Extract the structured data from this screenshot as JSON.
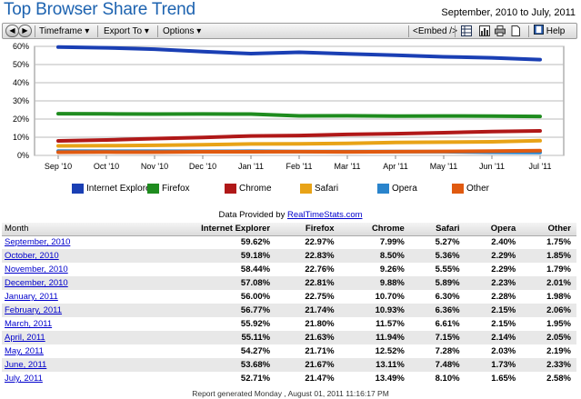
{
  "header": {
    "title": "Top Browser Share Trend",
    "date_range": "September, 2010 to July, 2011"
  },
  "toolbar": {
    "timeframe_label": "Timeframe",
    "export_label": "Export To",
    "options_label": "Options",
    "embed_label": "<Embed />",
    "help_label": "Help"
  },
  "chart_data": {
    "type": "line",
    "title": "",
    "xlabel": "",
    "ylabel": "",
    "categories": [
      "Sep '10",
      "Oct '10",
      "Nov '10",
      "Dec '10",
      "Jan '11",
      "Feb '11",
      "Mar '11",
      "Apr '11",
      "May '11",
      "Jun '11",
      "Jul '11"
    ],
    "y_ticks": [
      "0%",
      "10%",
      "20%",
      "30%",
      "40%",
      "50%",
      "60%"
    ],
    "ylim": [
      0,
      60
    ],
    "grid": true,
    "legend_position": "bottom",
    "series": [
      {
        "name": "Internet Explorer",
        "color": "#1a3fb4",
        "values": [
          59.62,
          59.18,
          58.44,
          57.08,
          56.0,
          56.77,
          55.92,
          55.11,
          54.27,
          53.68,
          52.71
        ]
      },
      {
        "name": "Firefox",
        "color": "#1f8c1f",
        "values": [
          22.97,
          22.83,
          22.76,
          22.81,
          22.75,
          21.74,
          21.8,
          21.63,
          21.71,
          21.67,
          21.47
        ]
      },
      {
        "name": "Chrome",
        "color": "#b01818",
        "values": [
          7.99,
          8.5,
          9.26,
          9.88,
          10.7,
          10.93,
          11.57,
          11.94,
          12.52,
          13.11,
          13.49
        ]
      },
      {
        "name": "Safari",
        "color": "#e8a317",
        "values": [
          5.27,
          5.36,
          5.55,
          5.89,
          6.3,
          6.36,
          6.61,
          7.15,
          7.28,
          7.48,
          8.1
        ]
      },
      {
        "name": "Opera",
        "color": "#2a84cc",
        "values": [
          2.4,
          2.29,
          2.29,
          2.23,
          2.28,
          2.15,
          2.15,
          2.14,
          2.03,
          1.73,
          1.65
        ]
      },
      {
        "name": "Other",
        "color": "#e05a10",
        "values": [
          1.75,
          1.85,
          1.79,
          2.01,
          1.98,
          2.06,
          1.95,
          2.05,
          2.19,
          2.33,
          2.58
        ]
      }
    ]
  },
  "provided": {
    "prefix": "Data Provided by ",
    "link_text": "RealTimeStats.com"
  },
  "table": {
    "headers": [
      "Month",
      "Internet Explorer",
      "Firefox",
      "Chrome",
      "Safari",
      "Opera",
      "Other"
    ],
    "rows": [
      [
        "September, 2010",
        "59.62%",
        "22.97%",
        "7.99%",
        "5.27%",
        "2.40%",
        "1.75%"
      ],
      [
        "October, 2010",
        "59.18%",
        "22.83%",
        "8.50%",
        "5.36%",
        "2.29%",
        "1.85%"
      ],
      [
        "November, 2010",
        "58.44%",
        "22.76%",
        "9.26%",
        "5.55%",
        "2.29%",
        "1.79%"
      ],
      [
        "December, 2010",
        "57.08%",
        "22.81%",
        "9.88%",
        "5.89%",
        "2.23%",
        "2.01%"
      ],
      [
        "January, 2011",
        "56.00%",
        "22.75%",
        "10.70%",
        "6.30%",
        "2.28%",
        "1.98%"
      ],
      [
        "February, 2011",
        "56.77%",
        "21.74%",
        "10.93%",
        "6.36%",
        "2.15%",
        "2.06%"
      ],
      [
        "March, 2011",
        "55.92%",
        "21.80%",
        "11.57%",
        "6.61%",
        "2.15%",
        "1.95%"
      ],
      [
        "April, 2011",
        "55.11%",
        "21.63%",
        "11.94%",
        "7.15%",
        "2.14%",
        "2.05%"
      ],
      [
        "May, 2011",
        "54.27%",
        "21.71%",
        "12.52%",
        "7.28%",
        "2.03%",
        "2.19%"
      ],
      [
        "June, 2011",
        "53.68%",
        "21.67%",
        "13.11%",
        "7.48%",
        "1.73%",
        "2.33%"
      ],
      [
        "July, 2011",
        "52.71%",
        "21.47%",
        "13.49%",
        "8.10%",
        "1.65%",
        "2.58%"
      ]
    ]
  },
  "footer": {
    "text": "Report generated Monday , August 01, 2011 11:16:17 PM"
  }
}
